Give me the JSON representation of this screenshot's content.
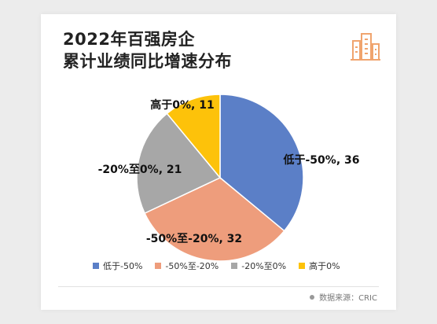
{
  "title_lines": [
    "2022年百强房企",
    "累计业绩同比增速分布"
  ],
  "source": "数据来源：CRIC",
  "chart_data": {
    "type": "pie",
    "title": "2022年百强房企累计业绩同比增速分布",
    "categories": [
      "低于-50%",
      "-50%至-20%",
      "-20%至0%",
      "高于0%"
    ],
    "values": [
      36,
      32,
      21,
      11
    ],
    "slice_labels": [
      "低于-50%, 36",
      "-50%至-20%, 32",
      "-20%至0%, 21",
      "高于0%, 11"
    ],
    "colors": [
      "#5b7fc7",
      "#ee9d7c",
      "#a7a7a7",
      "#fdc20a"
    ],
    "legend_position": "bottom"
  },
  "colors": {
    "accent": "#f0a46e"
  }
}
